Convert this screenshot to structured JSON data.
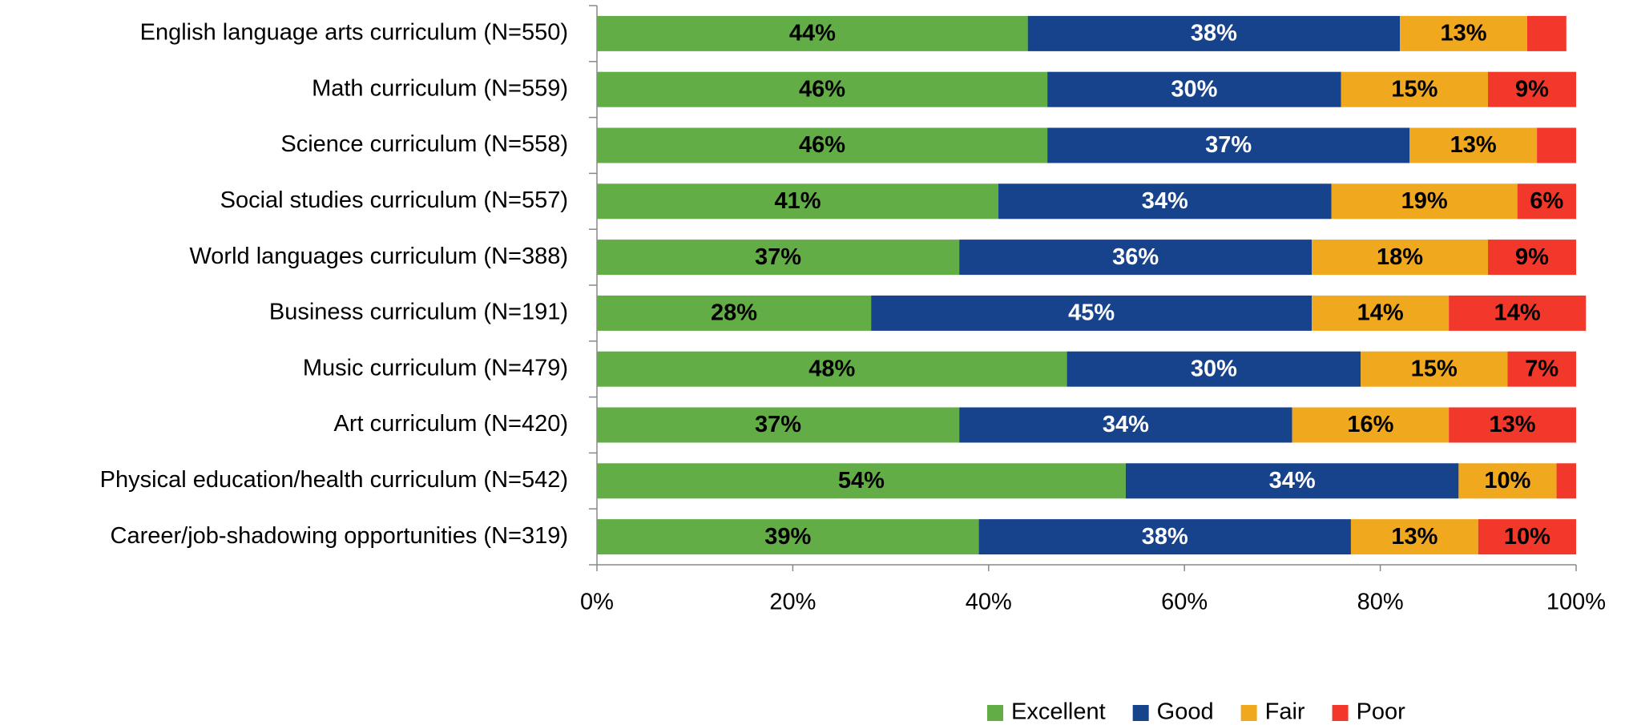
{
  "chart_data": {
    "type": "stacked_barh",
    "categories": [
      "English language arts curriculum (N=550)",
      "Math curriculum (N=559)",
      "Science curriculum (N=558)",
      "Social studies curriculum (N=557)",
      "World languages curriculum (N=388)",
      "Business curriculum (N=191)",
      "Music curriculum (N=479)",
      "Art curriculum (N=420)",
      "Physical education/health curriculum (N=542)",
      "Career/job-shadowing opportunities (N=319)"
    ],
    "series": [
      {
        "name": "Excellent",
        "color": "#63ad47",
        "label_color": "#000000",
        "values": [
          44,
          46,
          46,
          41,
          37,
          28,
          48,
          37,
          54,
          39
        ],
        "value_labels": [
          "44%",
          "46%",
          "46%",
          "41%",
          "37%",
          "28%",
          "48%",
          "37%",
          "54%",
          "39%"
        ]
      },
      {
        "name": "Good",
        "color": "#17428c",
        "label_color": "#ffffff",
        "values": [
          38,
          30,
          37,
          34,
          36,
          45,
          30,
          34,
          34,
          38
        ],
        "value_labels": [
          "38%",
          "30%",
          "37%",
          "34%",
          "36%",
          "45%",
          "30%",
          "34%",
          "34%",
          "38%"
        ]
      },
      {
        "name": "Fair",
        "color": "#f0a81f",
        "label_color": "#000000",
        "values": [
          13,
          15,
          13,
          19,
          18,
          14,
          15,
          16,
          10,
          13
        ],
        "value_labels": [
          "13%",
          "15%",
          "13%",
          "19%",
          "18%",
          "14%",
          "15%",
          "16%",
          "10%",
          "13%"
        ]
      },
      {
        "name": "Poor",
        "color": "#f2382a",
        "label_color": "#000000",
        "values": [
          4,
          9,
          4,
          6,
          9,
          14,
          7,
          13,
          2,
          10
        ],
        "value_labels": [
          null,
          "9%",
          null,
          "6%",
          "9%",
          "14%",
          "7%",
          "13%",
          null,
          "10%"
        ]
      }
    ],
    "xlim": [
      0,
      100
    ],
    "xticks": [
      {
        "value": 0,
        "label": "0%"
      },
      {
        "value": 20,
        "label": "20%"
      },
      {
        "value": 40,
        "label": "40%"
      },
      {
        "value": 60,
        "label": "60%"
      },
      {
        "value": 80,
        "label": "80%"
      },
      {
        "value": 100,
        "label": "100%"
      }
    ],
    "legend": "bottom"
  }
}
